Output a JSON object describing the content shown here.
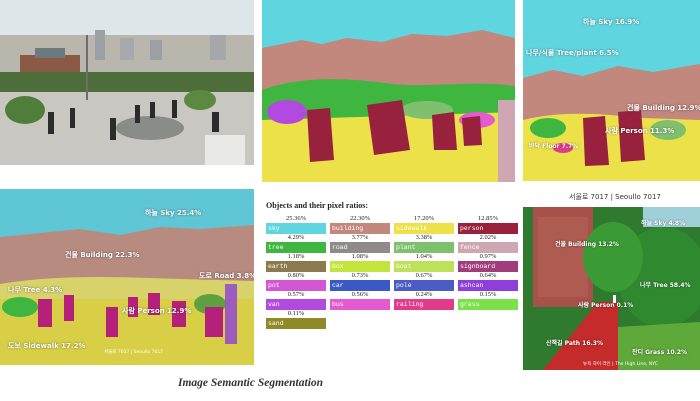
{
  "panel_photo": {},
  "panel_segmentation": {},
  "panel_labels_right": {
    "labels": [
      "하늘 Sky 16.9%",
      "나무/식물 Tree/plant 6.5%",
      "건물 Building 12.9%",
      "사람 Person 11.3%",
      "바닥 Floor 7.7%"
    ]
  },
  "caption_right": "서울로 7017  |  Seoullo 7017",
  "panel_overlay_left": {
    "labels": [
      "하늘 Sky 25.4%",
      "건물 Building 22.3%",
      "도로 Road 3.8%",
      "나무 Tree 4.3%",
      "사람 Person 12.9%",
      "도보 Sidewalk 17.2%"
    ],
    "credit": "서울로 7017  |  Seoullo 7017"
  },
  "legend": {
    "title": "Objects and their pixel ratios:",
    "items": [
      {
        "pct": "25.36%",
        "name": "sky",
        "color": "#5fd5e0"
      },
      {
        "pct": "22.30%",
        "name": "building",
        "color": "#c2877d"
      },
      {
        "pct": "17.20%",
        "name": "sidewalk",
        "color": "#ede14a"
      },
      {
        "pct": "12.85%",
        "name": "person",
        "color": "#98223e"
      },
      {
        "pct": "4.29%",
        "name": "tree",
        "color": "#3fb63f"
      },
      {
        "pct": "3.77%",
        "name": "road",
        "color": "#8f8b8b"
      },
      {
        "pct": "3.38%",
        "name": "plant",
        "color": "#7fc06f"
      },
      {
        "pct": "2.02%",
        "name": "fence",
        "color": "#cfa7b3"
      },
      {
        "pct": "1.18%",
        "name": "earth",
        "color": "#8b7a4e"
      },
      {
        "pct": "1.08%",
        "name": "box",
        "color": "#c3e43a"
      },
      {
        "pct": "1.04%",
        "name": "boat",
        "color": "#bfe05a"
      },
      {
        "pct": "0.97%",
        "name": "signboard",
        "color": "#a23d7d"
      },
      {
        "pct": "0.80%",
        "name": "pot",
        "color": "#d357d3"
      },
      {
        "pct": "0.73%",
        "name": "car",
        "color": "#3b58c7"
      },
      {
        "pct": "0.67%",
        "name": "pole",
        "color": "#4b5dc5"
      },
      {
        "pct": "0.64%",
        "name": "ashcan",
        "color": "#8e3fd9"
      },
      {
        "pct": "0.57%",
        "name": "van",
        "color": "#b24ae0"
      },
      {
        "pct": "0.56%",
        "name": "bus",
        "color": "#e45ad0"
      },
      {
        "pct": "0.24%",
        "name": "railing",
        "color": "#e23b8a"
      },
      {
        "pct": "0.15%",
        "name": "grass",
        "color": "#7be04a"
      },
      {
        "pct": "0.11%",
        "name": "sand",
        "color": "#8d8a27"
      }
    ]
  },
  "panel_greenway": {
    "labels": [
      "하늘 Sky 4.8%",
      "건물 Building 13.2%",
      "나무 Tree 58.4%",
      "사람 Person 0.1%",
      "산책길 Path 16.3%",
      "잔디 Grass 10.2%"
    ],
    "credit": "뉴욕 하이 라인  |  The High Line, NYC"
  },
  "main_caption": "Image Semantic Segmentation"
}
